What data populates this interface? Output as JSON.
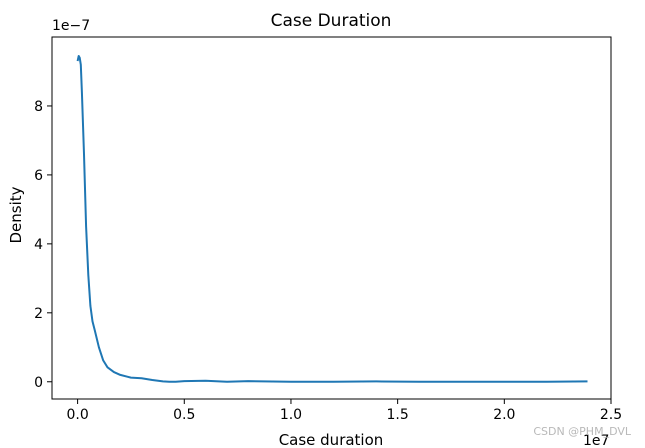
{
  "chart_data": {
    "type": "line",
    "title": "Case Duration",
    "xlabel": "Case duration",
    "ylabel": "Density",
    "x_multiplier_label": "1e7",
    "y_multiplier_label": "1e−7",
    "xlim": [
      -0.12,
      2.5
    ],
    "ylim": [
      -0.5,
      10.0
    ],
    "x_ticks": [
      0.0,
      0.5,
      1.0,
      1.5,
      2.0,
      2.5
    ],
    "x_tick_labels": [
      "0.0",
      "0.5",
      "1.0",
      "1.5",
      "2.0",
      "2.5"
    ],
    "y_ticks": [
      0,
      2,
      4,
      6,
      8
    ],
    "y_tick_labels": [
      "0",
      "2",
      "4",
      "6",
      "8"
    ],
    "grid": false,
    "series": [
      {
        "color": "#1f77b4",
        "x": [
          0.0,
          0.005,
          0.01,
          0.015,
          0.02,
          0.03,
          0.04,
          0.05,
          0.06,
          0.07,
          0.08,
          0.1,
          0.12,
          0.14,
          0.17,
          0.2,
          0.25,
          0.3,
          0.35,
          0.4,
          0.43,
          0.46,
          0.5,
          0.6,
          0.7,
          0.8,
          1.0,
          1.2,
          1.4,
          1.6,
          1.8,
          2.0,
          2.2,
          2.39
        ],
        "y": [
          9.3,
          9.45,
          9.4,
          9.2,
          8.4,
          6.6,
          4.5,
          3.1,
          2.2,
          1.75,
          1.5,
          1.0,
          0.62,
          0.42,
          0.28,
          0.2,
          0.12,
          0.1,
          0.05,
          0.01,
          0.0,
          0.0,
          0.02,
          0.03,
          0.0,
          0.02,
          0.0,
          0.0,
          0.01,
          0.0,
          0.0,
          0.0,
          0.0,
          0.01
        ]
      }
    ]
  },
  "watermark": "CSDN @PHM_DVL"
}
